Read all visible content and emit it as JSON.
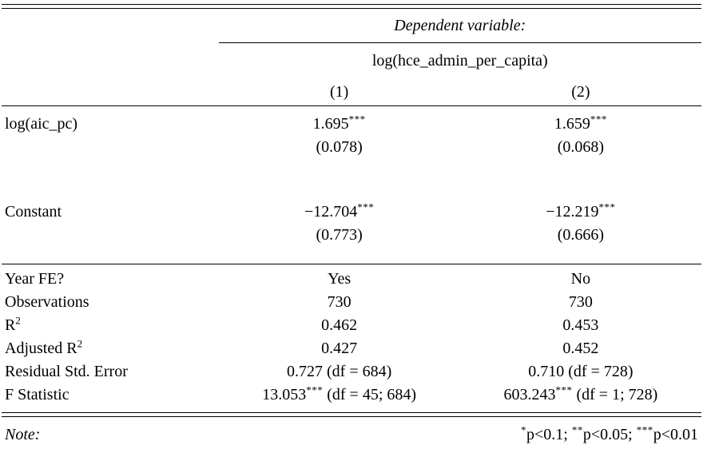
{
  "table": {
    "header": {
      "dependent_variable_label": "Dependent variable:",
      "dependent_variable_name": "log(hce_admin_per_capita)",
      "columns": [
        "(1)",
        "(2)"
      ]
    },
    "coefficients": [
      {
        "label": "log(aic_pc)",
        "estimates": [
          {
            "value": "1.695",
            "stars": "***"
          },
          {
            "value": "1.659",
            "stars": "***"
          }
        ],
        "std_errors": [
          "(0.078)",
          "(0.068)"
        ]
      },
      {
        "label": "Constant",
        "estimates": [
          {
            "value": "−12.704",
            "stars": "***"
          },
          {
            "value": "−12.219",
            "stars": "***"
          }
        ],
        "std_errors": [
          "(0.773)",
          "(0.666)"
        ]
      }
    ],
    "statistics": [
      {
        "label": "Year FE?",
        "label_superscript": "",
        "values": [
          "Yes",
          "No"
        ]
      },
      {
        "label": "Observations",
        "label_superscript": "",
        "values": [
          "730",
          "730"
        ]
      },
      {
        "label": "R",
        "label_superscript": "2",
        "values": [
          "0.462",
          "0.453"
        ]
      },
      {
        "label": "Adjusted R",
        "label_superscript": "2",
        "values": [
          "0.427",
          "0.452"
        ]
      },
      {
        "label": "Residual Std. Error",
        "label_superscript": "",
        "values": [
          "0.727 (df = 684)",
          "0.710 (df = 728)"
        ]
      },
      {
        "label": "F Statistic",
        "label_superscript": "",
        "rich_values": [
          {
            "value": "13.053",
            "stars": "***",
            "suffix": " (df = 45; 684)"
          },
          {
            "value": "603.243",
            "stars": "***",
            "suffix": " (df = 1; 728)"
          }
        ]
      }
    ],
    "note": {
      "label": "Note:",
      "levels": [
        {
          "stars": "*",
          "text": "p<0.1; "
        },
        {
          "stars": "**",
          "text": "p<0.05; "
        },
        {
          "stars": "***",
          "text": "p<0.01"
        }
      ]
    }
  }
}
